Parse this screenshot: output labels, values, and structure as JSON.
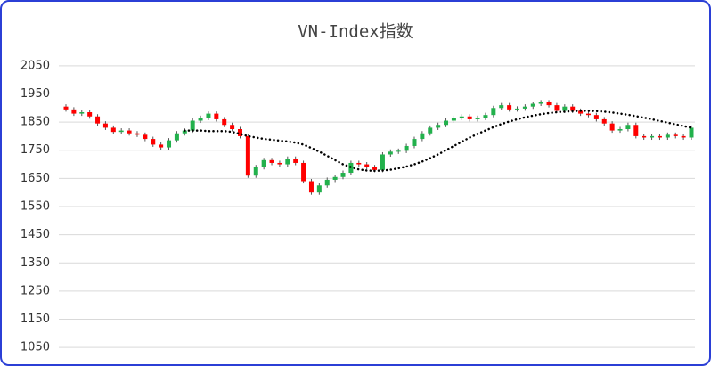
{
  "chart_data": {
    "type": "candlestick",
    "title": "VN-Index指数",
    "open": [
      1905,
      1895,
      1880,
      1885,
      1870,
      1845,
      1830,
      1815,
      1820,
      1810,
      1805,
      1790,
      1770,
      1760,
      1785,
      1810,
      1820,
      1855,
      1865,
      1880,
      1860,
      1840,
      1825,
      1800,
      1660,
      1690,
      1715,
      1705,
      1700,
      1720,
      1705,
      1640,
      1600,
      1625,
      1645,
      1655,
      1670,
      1705,
      1700,
      1690,
      1680,
      1735,
      1745,
      1748,
      1765,
      1790,
      1810,
      1830,
      1840,
      1855,
      1865,
      1870,
      1860,
      1865,
      1875,
      1900,
      1910,
      1895,
      1898,
      1905,
      1915,
      1920,
      1910,
      1890,
      1905,
      1890,
      1880,
      1875,
      1860,
      1845,
      1820,
      1825,
      1840,
      1800,
      1795,
      1800,
      1795,
      1805,
      1800,
      1795
    ],
    "high": [
      1913,
      1903,
      1893,
      1893,
      1878,
      1853,
      1838,
      1828,
      1828,
      1818,
      1813,
      1798,
      1778,
      1793,
      1818,
      1828,
      1863,
      1873,
      1888,
      1888,
      1868,
      1848,
      1833,
      1808,
      1698,
      1723,
      1723,
      1713,
      1728,
      1728,
      1713,
      1648,
      1633,
      1653,
      1663,
      1678,
      1713,
      1713,
      1708,
      1698,
      1743,
      1753,
      1756,
      1773,
      1798,
      1818,
      1838,
      1848,
      1863,
      1873,
      1878,
      1878,
      1873,
      1883,
      1908,
      1918,
      1918,
      1906,
      1913,
      1923,
      1928,
      1928,
      1918,
      1913,
      1913,
      1898,
      1888,
      1883,
      1868,
      1853,
      1833,
      1848,
      1848,
      1808,
      1808,
      1808,
      1813,
      1813,
      1808,
      1838
    ],
    "low": [
      1887,
      1872,
      1872,
      1862,
      1837,
      1822,
      1807,
      1807,
      1802,
      1797,
      1782,
      1762,
      1752,
      1752,
      1777,
      1802,
      1812,
      1847,
      1857,
      1852,
      1832,
      1817,
      1792,
      1652,
      1652,
      1682,
      1697,
      1692,
      1692,
      1697,
      1632,
      1592,
      1592,
      1617,
      1637,
      1647,
      1662,
      1692,
      1682,
      1672,
      1672,
      1727,
      1737,
      1740,
      1757,
      1782,
      1802,
      1822,
      1832,
      1847,
      1857,
      1852,
      1852,
      1857,
      1867,
      1892,
      1887,
      1887,
      1890,
      1897,
      1907,
      1902,
      1882,
      1882,
      1882,
      1872,
      1867,
      1852,
      1837,
      1812,
      1812,
      1817,
      1792,
      1787,
      1787,
      1787,
      1787,
      1792,
      1787,
      1787
    ],
    "close": [
      1895,
      1880,
      1885,
      1870,
      1845,
      1830,
      1815,
      1820,
      1810,
      1805,
      1790,
      1770,
      1760,
      1785,
      1810,
      1820,
      1855,
      1865,
      1880,
      1860,
      1840,
      1825,
      1800,
      1660,
      1690,
      1715,
      1705,
      1700,
      1720,
      1705,
      1640,
      1600,
      1625,
      1645,
      1655,
      1670,
      1705,
      1700,
      1690,
      1680,
      1735,
      1745,
      1748,
      1765,
      1790,
      1810,
      1830,
      1840,
      1855,
      1865,
      1870,
      1860,
      1865,
      1875,
      1900,
      1910,
      1895,
      1898,
      1905,
      1915,
      1920,
      1910,
      1890,
      1905,
      1890,
      1880,
      1875,
      1860,
      1845,
      1820,
      1825,
      1840,
      1800,
      1795,
      1800,
      1795,
      1805,
      1800,
      1795,
      1830
    ],
    "moving_average": [
      null,
      null,
      null,
      null,
      null,
      null,
      null,
      null,
      null,
      null,
      null,
      null,
      null,
      null,
      null,
      1820,
      1820,
      1820,
      1818,
      1818,
      1818,
      1815,
      1808,
      1800,
      1795,
      1790,
      1787,
      1784,
      1781,
      1777,
      1770,
      1758,
      1745,
      1730,
      1715,
      1700,
      1690,
      1682,
      1678,
      1677,
      1678,
      1681,
      1686,
      1692,
      1700,
      1710,
      1722,
      1735,
      1750,
      1765,
      1780,
      1795,
      1808,
      1820,
      1832,
      1843,
      1852,
      1860,
      1867,
      1873,
      1878,
      1882,
      1885,
      1887,
      1889,
      1890,
      1890,
      1889,
      1887,
      1884,
      1880,
      1876,
      1871,
      1866,
      1860,
      1854,
      1848,
      1842,
      1836,
      1830
    ],
    "up_color": "#22b14c",
    "down_color": "#ff0000",
    "ma_color": "#000000",
    "ylim": [
      1000,
      2100
    ],
    "yticks": [
      1050,
      1150,
      1250,
      1350,
      1450,
      1550,
      1650,
      1750,
      1850,
      1950,
      2050
    ],
    "grid": true
  }
}
